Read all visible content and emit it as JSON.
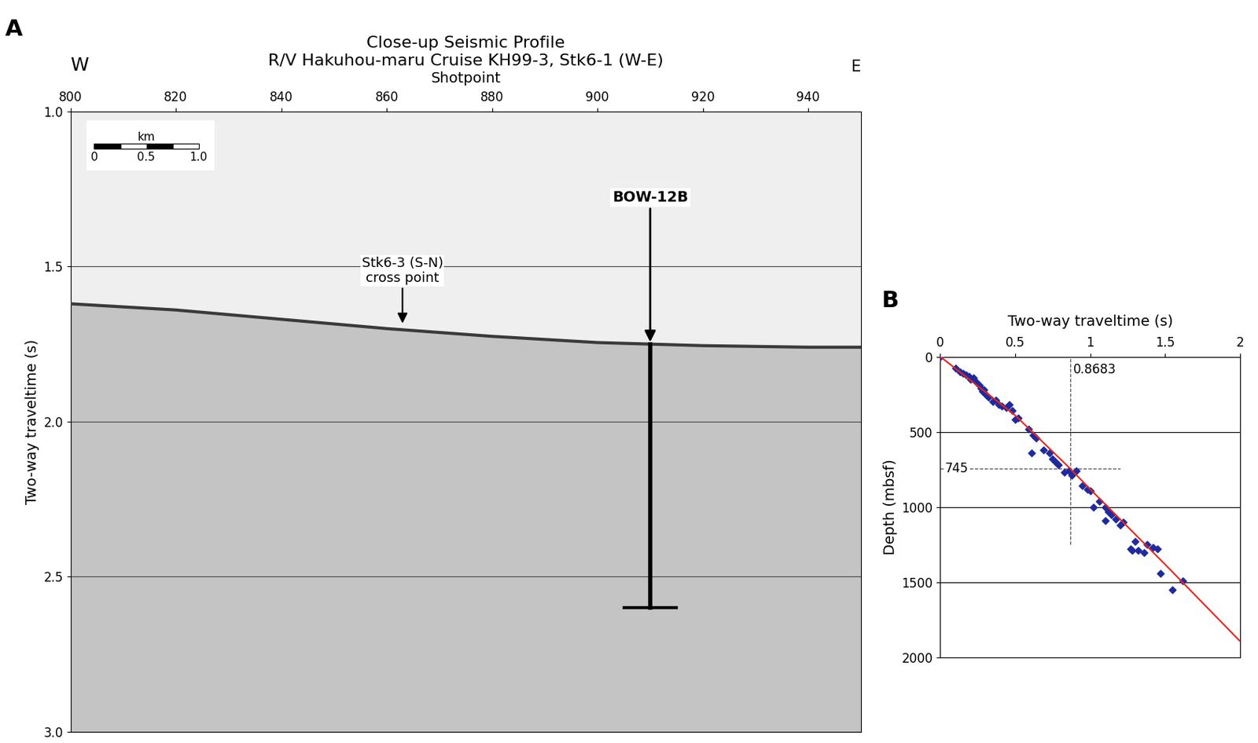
{
  "chart_data": [
    {
      "label": "A",
      "type": "line",
      "title": "Close-up Seismic Profile\nR/V Hakuhou-maru Cruise KH99-3, Stk6-1 (W-E)",
      "x_label": "Shotpoint",
      "y_label": "Two-way traveltime (s)",
      "xlim": [
        800,
        950
      ],
      "xticks": [
        800,
        820,
        840,
        860,
        880,
        900,
        920,
        940
      ],
      "ylim": [
        3.0,
        1.0
      ],
      "yticks": [
        1.0,
        1.5,
        2.0,
        2.5,
        3.0
      ],
      "grid": true,
      "x": [
        800,
        820,
        840,
        860,
        880,
        900,
        920,
        940,
        950
      ],
      "values": [
        1.62,
        1.64,
        1.67,
        1.7,
        1.725,
        1.745,
        1.755,
        1.76,
        1.76
      ],
      "color": "#3a3a3a",
      "direction_labels": {
        "left": "W",
        "right": "E"
      },
      "scale_bar": {
        "title": "km",
        "ticks": [
          0,
          0.5,
          1.0
        ]
      },
      "annotations": [
        {
          "text": "Stk6-3 (S-N)\ncross point",
          "x": 863,
          "y": 1.69
        },
        {
          "text": "BOW-12B",
          "x": 910,
          "y": 1.75
        }
      ],
      "borehole": {
        "x": 910,
        "top": 1.75,
        "bottom": 2.6
      }
    },
    {
      "label": "B",
      "type": "scatter",
      "x_label": "Two-way traveltime (s)",
      "y_label": "Depth (mbsf)",
      "xlim": [
        0,
        2
      ],
      "xticks": [
        0,
        0.5,
        1,
        1.5,
        2
      ],
      "ylim": [
        2000,
        0
      ],
      "yticks": [
        0,
        500,
        1000,
        1500,
        2000
      ],
      "grid": true,
      "x": [
        0,
        0.1,
        0.13,
        0.15,
        0.17,
        0.19,
        0.2,
        0.22,
        0.24,
        0.26,
        0.27,
        0.28,
        0.29,
        0.3,
        0.32,
        0.35,
        0.37,
        0.39,
        0.41,
        0.44,
        0.46,
        0.48,
        0.5,
        0.52,
        0.59,
        0.62,
        0.64,
        0.61,
        0.69,
        0.73,
        0.75,
        0.77,
        0.79,
        0.83,
        0.86,
        0.88,
        0.91,
        0.95,
        0.98,
        1.0,
        1.02,
        1.06,
        1.1,
        1.12,
        1.14,
        1.1,
        1.17,
        1.2,
        1.22,
        1.27,
        1.28,
        1.3,
        1.32,
        1.36,
        1.38,
        1.42,
        1.45,
        1.47,
        1.55,
        1.62
      ],
      "values": [
        0,
        75,
        100,
        110,
        120,
        130,
        150,
        140,
        170,
        190,
        210,
        230,
        220,
        250,
        270,
        300,
        290,
        320,
        330,
        340,
        320,
        360,
        420,
        410,
        480,
        520,
        540,
        640,
        620,
        640,
        680,
        700,
        720,
        770,
        760,
        790,
        760,
        860,
        880,
        890,
        1000,
        960,
        1000,
        1030,
        1050,
        1090,
        1080,
        1120,
        1100,
        1280,
        1290,
        1230,
        1290,
        1300,
        1250,
        1270,
        1280,
        1440,
        1550,
        1490
      ],
      "color": "#1f2a9e",
      "marker": "diamond",
      "fit": {
        "x": [
          0,
          0.5,
          0.8683,
          1.0,
          1.5,
          2.0
        ],
        "values": [
          0,
          390,
          745,
          880,
          1380,
          1890
        ],
        "color": "#e8251b"
      },
      "reference": {
        "x": 0.8683,
        "y": 745
      }
    }
  ]
}
